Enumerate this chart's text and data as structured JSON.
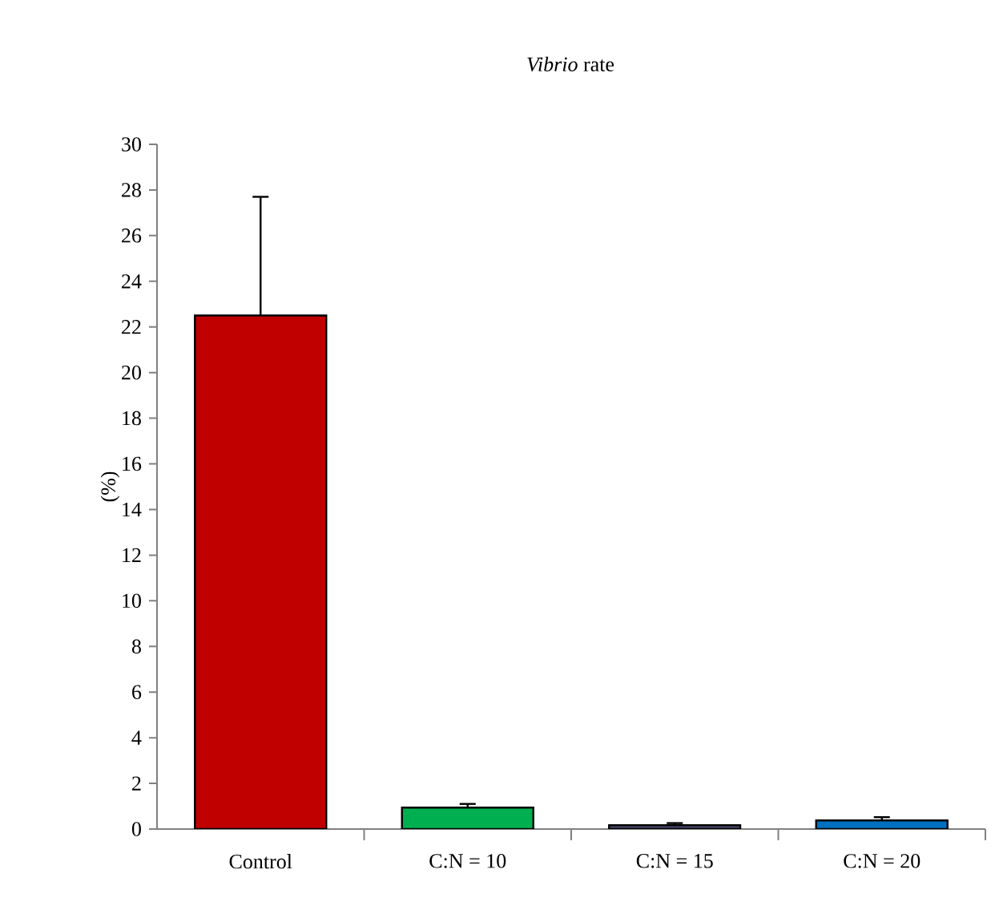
{
  "chart_data": {
    "type": "bar",
    "title": "*Vibrio* rate",
    "ylabel": "(%)",
    "categories": [
      "Control",
      "C:N = 10",
      "C:N = 15",
      "C:N = 20"
    ],
    "values": [
      22.5,
      0.94,
      0.17,
      0.38
    ],
    "errors": [
      5.2,
      0.16,
      0.09,
      0.14
    ],
    "colors": [
      "#c00000",
      "#00b050",
      "#404060",
      "#0070c0"
    ],
    "ylim": [
      0,
      30
    ],
    "yticks": [
      0,
      2,
      4,
      6,
      8,
      10,
      12,
      14,
      16,
      18,
      20,
      22,
      24,
      26,
      28,
      30
    ],
    "grid": false
  }
}
